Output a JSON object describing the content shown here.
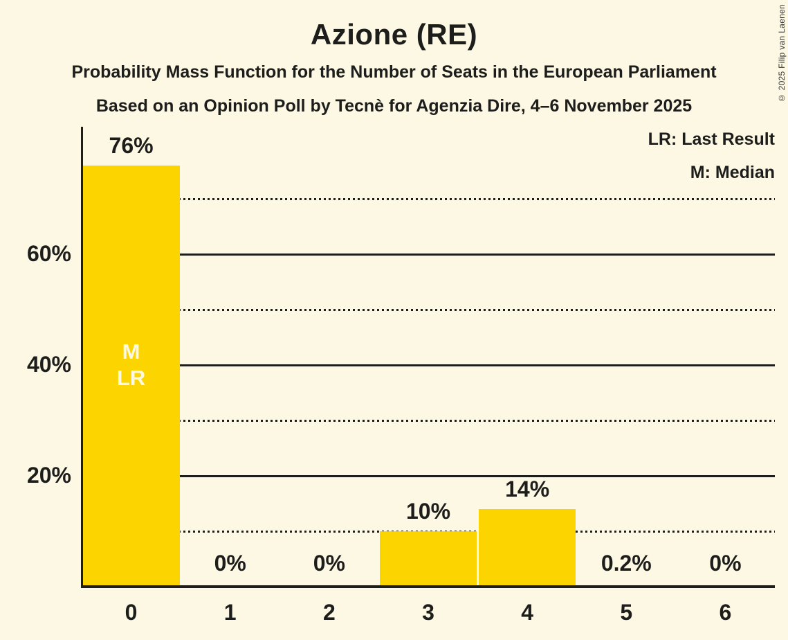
{
  "title": "Azione (RE)",
  "subtitle1": "Probability Mass Function for the Number of Seats in the European Parliament",
  "subtitle2": "Based on an Opinion Poll by Tecnè for Agenzia Dire, 4–6 November 2025",
  "copyright": "© 2025 Filip van Laenen",
  "legend": {
    "lr": "LR: Last Result",
    "m": "M: Median"
  },
  "colors": {
    "background": "#FCF8E3",
    "bar": "#FCD500",
    "text": "#1D1D1B",
    "in_bar_text": "#FCF8E3",
    "axis": "#1D1D1B"
  },
  "chart_data": {
    "type": "bar",
    "title": "Azione (RE)",
    "categories": [
      "0",
      "1",
      "2",
      "3",
      "4",
      "5",
      "6"
    ],
    "values": [
      76,
      0,
      0,
      10,
      14,
      0.2,
      0
    ],
    "bar_labels": [
      "76%",
      "0%",
      "0%",
      "10%",
      "14%",
      "0.2%",
      "0%"
    ],
    "ylim": [
      0,
      83
    ],
    "y_solid_gridlines": [
      20,
      40,
      60
    ],
    "y_dotted_gridlines": [
      10,
      30,
      50,
      70
    ],
    "y_tick_labels": {
      "20": "20%",
      "40": "40%",
      "60": "60%"
    },
    "grid": "horizontal",
    "legend_position": "top-right",
    "median": {
      "bar_index": 0,
      "marker": "M"
    },
    "last_result": {
      "bar_index": 0,
      "marker": "LR"
    },
    "in_bar_marker_lines": [
      "M",
      "LR"
    ]
  }
}
